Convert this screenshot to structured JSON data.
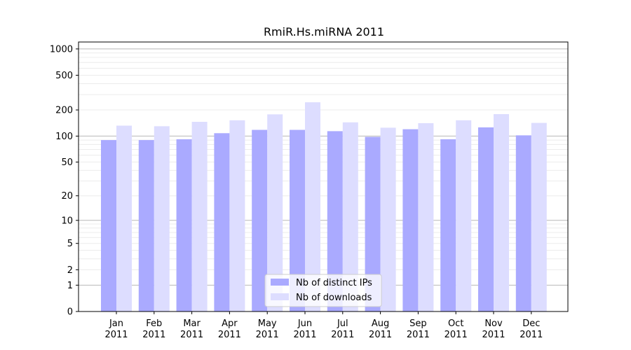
{
  "chart_data": {
    "type": "bar",
    "title": "RmiR.Hs.miRNA 2011",
    "xlabel": "",
    "ylabel": "",
    "yscale": "log1p",
    "ylim": [
      0,
      1200
    ],
    "yticks": [
      0,
      1,
      2,
      5,
      10,
      20,
      50,
      100,
      200,
      500,
      1000
    ],
    "grid": true,
    "legend_position": "bottom-center",
    "categories": [
      [
        "Jan",
        "2011"
      ],
      [
        "Feb",
        "2011"
      ],
      [
        "Mar",
        "2011"
      ],
      [
        "Apr",
        "2011"
      ],
      [
        "May",
        "2011"
      ],
      [
        "Jun",
        "2011"
      ],
      [
        "Jul",
        "2011"
      ],
      [
        "Aug",
        "2011"
      ],
      [
        "Sep",
        "2011"
      ],
      [
        "Oct",
        "2011"
      ],
      [
        "Nov",
        "2011"
      ],
      [
        "Dec",
        "2011"
      ]
    ],
    "series": [
      {
        "name": "Nb of distinct IPs",
        "color": "#aaaaff",
        "values": [
          90,
          90,
          92,
          108,
          118,
          118,
          114,
          98,
          120,
          92,
          126,
          102
        ]
      },
      {
        "name": "Nb of downloads",
        "color": "#ddddff",
        "values": [
          132,
          130,
          146,
          152,
          178,
          245,
          144,
          125,
          141,
          152,
          179,
          142
        ]
      }
    ]
  }
}
